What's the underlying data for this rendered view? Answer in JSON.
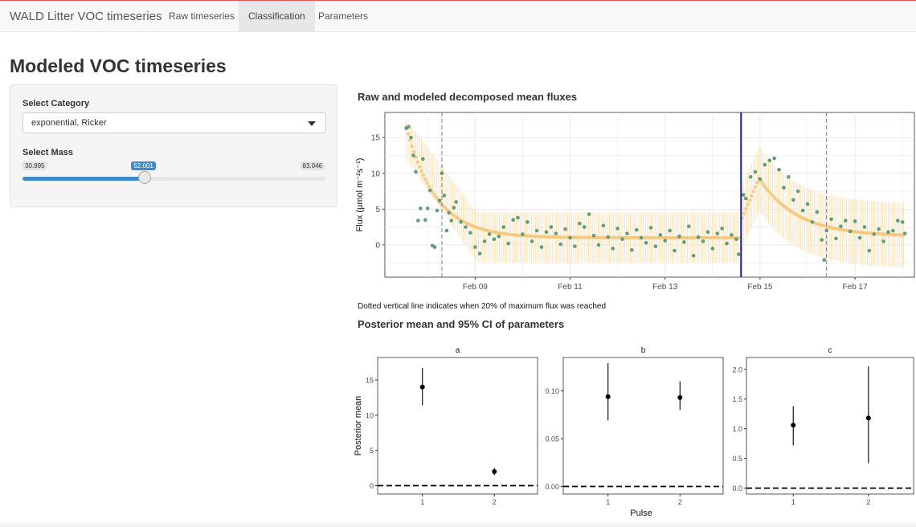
{
  "navbar": {
    "brand": "WALD Litter VOC timeseries",
    "tabs": [
      {
        "label": "Raw timeseries",
        "active": false
      },
      {
        "label": "Classification",
        "active": true
      },
      {
        "label": "Parameters",
        "active": false
      }
    ]
  },
  "page_title": "Modeled VOC timeseries",
  "sidebar": {
    "category_label": "Select Category",
    "category_value": "exponential, Ricker",
    "mass_label": "Select Mass",
    "mass_min": "30.995",
    "mass_max": "83.046",
    "mass_value": "52.001",
    "mass_fraction": 0.403
  },
  "section_flux_title": "Raw and modeled decomposed mean fluxes",
  "dotted_note": "Dotted vertical line indicates when 20% of maximum flux was reached",
  "section_params_title": "Posterior mean and 95% CI of parameters",
  "colors": {
    "raw_points": "#5f9e7a",
    "model_points": "#f5c779",
    "ci_band": "#fbe3b5",
    "pulse_line": "#1f1f8f",
    "dashed_line": "#7a7a9e",
    "accent": "#428bca"
  },
  "chart_data": [
    {
      "type": "scatter",
      "ylabel": "Flux (µmol m⁻²s⁻¹)",
      "xlabel": "",
      "x_tick_labels": [
        "Feb 09",
        "Feb 11",
        "Feb 13",
        "Feb 15",
        "Feb 17"
      ],
      "x_tick_days": [
        9,
        11,
        13,
        15,
        17
      ],
      "xlim_days": [
        7.1,
        18.25
      ],
      "y_ticks": [
        0,
        5,
        10,
        15
      ],
      "ylim": [
        -4.5,
        18.5
      ],
      "grid": true,
      "pulse_start_day": 14.6,
      "dashed_lines_days": [
        8.3,
        16.4
      ],
      "series": [
        {
          "style": "raw points",
          "points": [
            [
              7.55,
              16.3
            ],
            [
              7.6,
              16.5
            ],
            [
              7.65,
              15
            ],
            [
              7.7,
              12.5
            ],
            [
              7.75,
              10.2
            ],
            [
              7.8,
              3.4
            ],
            [
              7.85,
              5.1
            ],
            [
              7.9,
              12
            ],
            [
              7.95,
              3.5
            ],
            [
              8.0,
              5.1
            ],
            [
              8.05,
              7.6
            ],
            [
              8.1,
              -0.1
            ],
            [
              8.15,
              -0.3
            ],
            [
              8.2,
              4.8
            ],
            [
              8.25,
              6.2
            ],
            [
              8.3,
              10
            ],
            [
              8.35,
              6.9
            ],
            [
              8.4,
              2
            ],
            [
              8.45,
              4.5
            ],
            [
              8.5,
              3.4
            ],
            [
              8.55,
              5.2
            ],
            [
              8.6,
              6
            ],
            [
              8.7,
              3.2
            ],
            [
              8.8,
              2.5
            ],
            [
              8.9,
              1.7
            ],
            [
              9.0,
              -0.3
            ],
            [
              9.1,
              -1.2
            ],
            [
              9.2,
              0.5
            ],
            [
              9.3,
              1.5
            ],
            [
              9.4,
              0.8
            ],
            [
              9.5,
              1.2
            ],
            [
              9.6,
              2.5
            ],
            [
              9.7,
              0.2
            ],
            [
              9.8,
              3.5
            ],
            [
              9.9,
              3.8
            ],
            [
              10.0,
              1.5
            ],
            [
              10.1,
              3.2
            ],
            [
              10.2,
              0.5
            ],
            [
              10.3,
              2.0
            ],
            [
              10.4,
              -0.3
            ],
            [
              10.5,
              1.8
            ],
            [
              10.6,
              2.5
            ],
            [
              10.7,
              1.6
            ],
            [
              10.8,
              0.1
            ],
            [
              10.9,
              2.2
            ],
            [
              11.0,
              1.0
            ],
            [
              11.1,
              -0.2
            ],
            [
              11.2,
              3.0
            ],
            [
              11.3,
              2.5
            ],
            [
              11.4,
              4.3
            ],
            [
              11.5,
              1.3
            ],
            [
              11.6,
              0.0
            ],
            [
              11.7,
              2.7
            ],
            [
              11.8,
              1.1
            ],
            [
              11.9,
              -0.5
            ],
            [
              12.0,
              2.3
            ],
            [
              12.1,
              0.8
            ],
            [
              12.2,
              1.6
            ],
            [
              12.3,
              -0.7
            ],
            [
              12.4,
              2.1
            ],
            [
              12.5,
              1.0
            ],
            [
              12.6,
              0.3
            ],
            [
              12.7,
              2.4
            ],
            [
              12.8,
              -0.2
            ],
            [
              12.9,
              1.4
            ],
            [
              13.0,
              0.6
            ],
            [
              13.1,
              2.0
            ],
            [
              13.2,
              -0.8
            ],
            [
              13.3,
              1.2
            ],
            [
              13.4,
              0.4
            ],
            [
              13.5,
              2.6
            ],
            [
              13.6,
              -1.5
            ],
            [
              13.7,
              1.1
            ],
            [
              13.8,
              0.5
            ],
            [
              13.9,
              1.8
            ],
            [
              14.0,
              -0.5
            ],
            [
              14.1,
              1.6
            ],
            [
              14.2,
              2.3
            ],
            [
              14.3,
              0.2
            ],
            [
              14.4,
              1.4
            ],
            [
              14.5,
              0.8
            ],
            [
              14.55,
              -1.3
            ],
            [
              14.65,
              7.0
            ],
            [
              14.7,
              6.5
            ],
            [
              14.8,
              9.5
            ],
            [
              14.9,
              10.2
            ],
            [
              15.0,
              9.2
            ],
            [
              15.1,
              11.2
            ],
            [
              15.2,
              11.8
            ],
            [
              15.3,
              12.1
            ],
            [
              15.4,
              10.5
            ],
            [
              15.5,
              8.0
            ],
            [
              15.6,
              9.5
            ],
            [
              15.7,
              6.3
            ],
            [
              15.8,
              7.5
            ],
            [
              15.9,
              4.8
            ],
            [
              16.0,
              5.7
            ],
            [
              16.1,
              3.2
            ],
            [
              16.2,
              4.6
            ],
            [
              16.3,
              0.7
            ],
            [
              16.35,
              -2.1
            ],
            [
              16.4,
              2.0
            ],
            [
              16.5,
              3.6
            ],
            [
              16.6,
              0.9
            ],
            [
              16.7,
              2.6
            ],
            [
              16.8,
              3.4
            ],
            [
              16.9,
              1.9
            ],
            [
              17.0,
              3.3
            ],
            [
              17.1,
              1.0
            ],
            [
              17.2,
              2.5
            ],
            [
              17.3,
              -0.8
            ],
            [
              17.4,
              1.5
            ],
            [
              17.5,
              2.2
            ],
            [
              17.6,
              0.5
            ],
            [
              17.7,
              1.8
            ],
            [
              17.8,
              2.0
            ],
            [
              17.9,
              3.4
            ],
            [
              18.0,
              3.2
            ],
            [
              18.05,
              1.6
            ]
          ]
        },
        {
          "style": "model mean with 95% CI",
          "pulses": [
            {
              "start": 7.55,
              "end": 14.55,
              "a": 14.0,
              "b": 0.094,
              "decay_per_day": 1.6,
              "y0": 15.5,
              "ci_low_start": 12,
              "ci_high_start": 17.5,
              "ci_low_end": -2.5,
              "ci_high_end": 4.5
            },
            {
              "start": 14.62,
              "end": 18.05,
              "peak_day": 14.98,
              "peak": 9.3,
              "base": 1.2,
              "ci_half": 4.5
            }
          ]
        }
      ]
    },
    {
      "type": "scatter",
      "panels": [
        {
          "name": "a",
          "y_ticks": [
            0,
            5,
            10,
            15
          ],
          "ylim": [
            -1.2,
            18.2
          ],
          "points": [
            {
              "pulse": 1,
              "mean": 14.0,
              "low": 11.4,
              "high": 16.7
            },
            {
              "pulse": 2,
              "mean": 2.0,
              "low": 1.5,
              "high": 2.5
            }
          ]
        },
        {
          "name": "b",
          "y_ticks": [
            0.0,
            0.05,
            0.1
          ],
          "y_tick_labels": [
            "0.00",
            "0.05",
            "0.10"
          ],
          "ylim": [
            -0.008,
            0.135
          ],
          "points": [
            {
              "pulse": 1,
              "mean": 0.094,
              "low": 0.069,
              "high": 0.129
            },
            {
              "pulse": 2,
              "mean": 0.093,
              "low": 0.08,
              "high": 0.11
            }
          ]
        },
        {
          "name": "c",
          "y_ticks": [
            0.0,
            0.5,
            1.0,
            1.5,
            2.0
          ],
          "y_tick_labels": [
            "0.0",
            "0.5",
            "1.0",
            "1.5",
            "2.0"
          ],
          "ylim": [
            -0.1,
            2.2
          ],
          "points": [
            {
              "pulse": 1,
              "mean": 1.06,
              "low": 0.72,
              "high": 1.38
            },
            {
              "pulse": 2,
              "mean": 1.18,
              "low": 0.42,
              "high": 2.05
            }
          ]
        }
      ],
      "x_tick_labels": [
        "1",
        "2"
      ],
      "xlabel": "Pulse",
      "ylabel": "Posterior mean",
      "hline": 0
    }
  ]
}
